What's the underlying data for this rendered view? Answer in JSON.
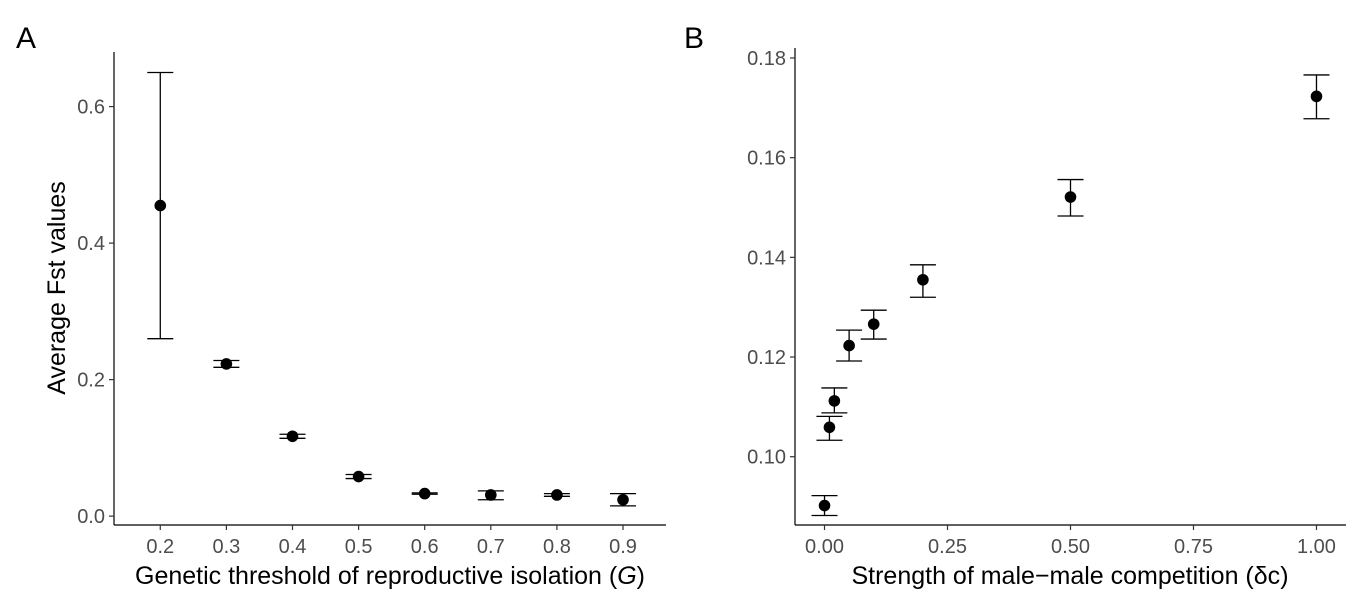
{
  "chart_data": [
    {
      "type": "scatter",
      "panel_label": "A",
      "xlabel": "Genetic threshold of reproductive isolation",
      "xlabel_symbol": "G",
      "ylabel": "Average Fst values",
      "x_tick_labels": [
        "0.2",
        "0.3",
        "0.4",
        "0.5",
        "0.6",
        "0.7",
        "0.8",
        "0.9"
      ],
      "y_tick_labels": [
        "0.0",
        "0.2",
        "0.4",
        "0.6"
      ],
      "y_ticks": [
        0.0,
        0.2,
        0.4,
        0.6
      ],
      "x": [
        0.2,
        0.3,
        0.4,
        0.5,
        0.6,
        0.7,
        0.8,
        0.9
      ],
      "y": [
        0.455,
        0.223,
        0.117,
        0.058,
        0.033,
        0.031,
        0.031,
        0.024
      ],
      "y_lower": [
        0.26,
        0.218,
        0.114,
        0.055,
        0.032,
        0.024,
        0.029,
        0.015
      ],
      "y_upper": [
        0.65,
        0.228,
        0.12,
        0.061,
        0.034,
        0.037,
        0.033,
        0.033
      ],
      "xlim": [
        0.13,
        0.965
      ],
      "ylim": [
        -0.013,
        0.68
      ],
      "grid": false,
      "error_bars": true
    },
    {
      "type": "scatter",
      "panel_label": "B",
      "xlabel": "Strength of male−male competition",
      "xlabel_symbol": "δc",
      "ylabel": "",
      "x_tick_labels": [
        "0.00",
        "0.25",
        "0.50",
        "0.75",
        "1.00"
      ],
      "y_tick_labels": [
        "0.10",
        "0.12",
        "0.14",
        "0.16",
        "0.18"
      ],
      "x_ticks": [
        0.0,
        0.25,
        0.5,
        0.75,
        1.0
      ],
      "y_ticks": [
        0.1,
        0.12,
        0.14,
        0.16,
        0.18
      ],
      "x": [
        0.0,
        0.01,
        0.02,
        0.05,
        0.1,
        0.2,
        0.5,
        1.0
      ],
      "y": [
        0.0902,
        0.1059,
        0.1112,
        0.1223,
        0.1266,
        0.1355,
        0.1521,
        0.1723
      ],
      "y_lower": [
        0.0882,
        0.1033,
        0.1088,
        0.1192,
        0.1236,
        0.132,
        0.1483,
        0.1678
      ],
      "y_upper": [
        0.0922,
        0.1081,
        0.1138,
        0.1254,
        0.1294,
        0.1385,
        0.1556,
        0.1766
      ],
      "xlim": [
        -0.06,
        1.06
      ],
      "ylim": [
        0.0863,
        0.182
      ],
      "grid": false,
      "error_bars": true
    }
  ]
}
